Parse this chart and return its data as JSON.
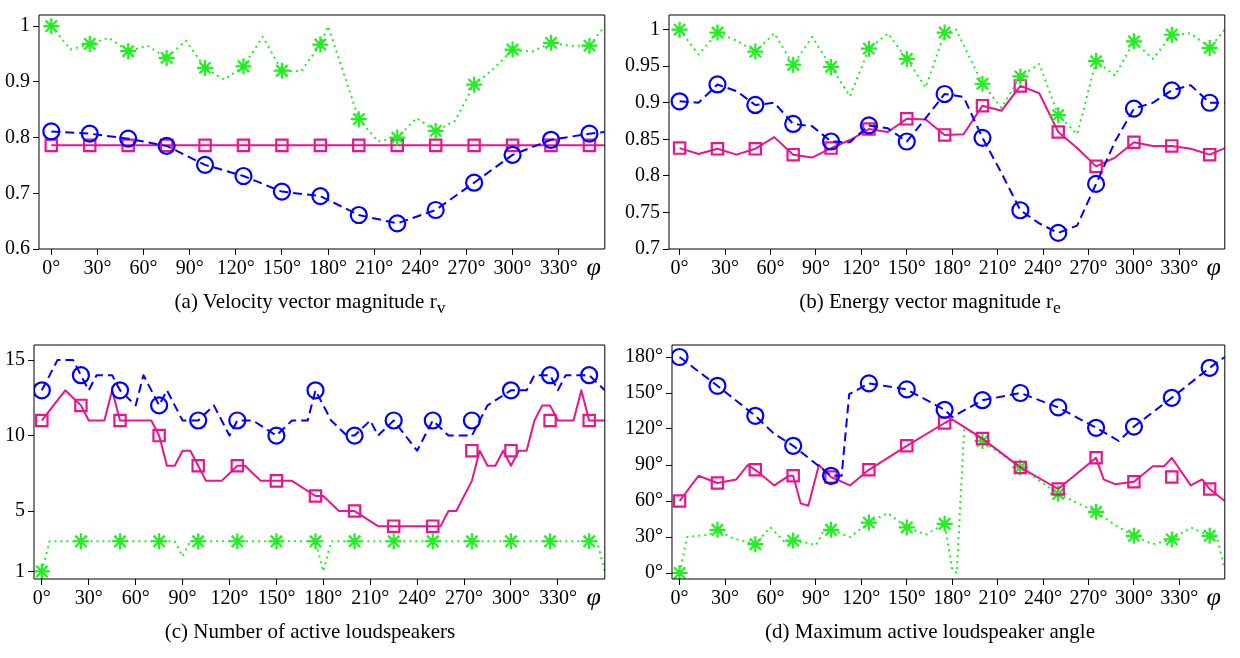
{
  "chart_data": [
    {
      "type": "line",
      "title": "(a) Velocity vector magnitude r$_{v}$",
      "xlabel": "φ",
      "xlim": [
        -8,
        360
      ],
      "ylim": [
        0.6,
        1.02
      ],
      "xticks": [
        {
          "value": 0,
          "label": "0°"
        },
        {
          "value": 30,
          "label": "30°"
        },
        {
          "value": 60,
          "label": "60°"
        },
        {
          "value": 90,
          "label": "90°"
        },
        {
          "value": 120,
          "label": "120°"
        },
        {
          "value": 150,
          "label": "150°"
        },
        {
          "value": 180,
          "label": "180°"
        },
        {
          "value": 210,
          "label": "210°"
        },
        {
          "value": 240,
          "label": "240°"
        },
        {
          "value": 270,
          "label": "270°"
        },
        {
          "value": 300,
          "label": "300°"
        },
        {
          "value": 330,
          "label": "330°"
        }
      ],
      "yticks": [
        0.6,
        0.7,
        0.8,
        0.9,
        1
      ],
      "grid": false,
      "legend": false,
      "series": [
        {
          "type": "line",
          "color": "#22ee22",
          "line_style": "dotted",
          "marker": "none",
          "x": [
            0,
            12.5,
            25,
            37.5,
            50,
            62.5,
            75,
            87.5,
            100,
            112.5,
            125,
            137.5,
            150,
            162.5,
            175,
            180,
            200,
            212.5,
            225,
            237.5,
            250,
            262.5,
            275,
            287.5,
            300,
            312.5,
            325,
            337.5,
            350,
            360
          ],
          "values": [
            1.0,
            0.958,
            0.968,
            0.979,
            0.955,
            0.965,
            0.943,
            0.974,
            0.925,
            0.904,
            0.928,
            0.981,
            0.92,
            0.919,
            0.967,
            1.0,
            0.833,
            0.793,
            0.8,
            0.835,
            0.812,
            0.83,
            0.895,
            0.923,
            0.958,
            0.954,
            0.97,
            0.965,
            0.965,
            1.0
          ]
        },
        {
          "type": "scatter",
          "color": "#22ee22",
          "marker": "cross",
          "x": [
            0,
            25,
            50,
            75,
            100,
            125,
            150,
            175,
            200,
            225,
            250,
            275,
            300,
            325,
            350
          ],
          "values": [
            1.0,
            0.968,
            0.955,
            0.943,
            0.925,
            0.928,
            0.92,
            0.967,
            0.833,
            0.8,
            0.812,
            0.895,
            0.958,
            0.97,
            0.965
          ]
        },
        {
          "type": "line",
          "color": "#0000ff",
          "line_style": "dashed",
          "marker": "none",
          "x": [
            0,
            25,
            50,
            75,
            100,
            125,
            150,
            175,
            200,
            225,
            250,
            275,
            300,
            325,
            350,
            360
          ],
          "values": [
            0.811,
            0.807,
            0.798,
            0.785,
            0.751,
            0.731,
            0.703,
            0.695,
            0.661,
            0.646,
            0.67,
            0.719,
            0.769,
            0.796,
            0.807,
            0.81
          ]
        },
        {
          "type": "scatter",
          "color": "#0000ff",
          "marker": "circle",
          "x": [
            0,
            25,
            50,
            75,
            100,
            125,
            150,
            175,
            200,
            225,
            250,
            275,
            300,
            325,
            350
          ],
          "values": [
            0.811,
            0.807,
            0.798,
            0.785,
            0.751,
            0.731,
            0.703,
            0.695,
            0.661,
            0.646,
            0.67,
            0.719,
            0.769,
            0.796,
            0.807
          ]
        },
        {
          "type": "line",
          "color": "#e6168c",
          "line_style": "solid",
          "marker": "none",
          "x": [
            0,
            360
          ],
          "values": [
            0.786,
            0.786
          ]
        },
        {
          "type": "scatter",
          "color": "#e6168c",
          "marker": "square",
          "x": [
            0,
            25,
            50,
            75,
            100,
            125,
            150,
            175,
            200,
            225,
            250,
            275,
            300,
            325,
            350
          ],
          "values": [
            0.786,
            0.786,
            0.786,
            0.786,
            0.786,
            0.786,
            0.786,
            0.786,
            0.786,
            0.786,
            0.786,
            0.786,
            0.786,
            0.786,
            0.786
          ]
        }
      ]
    },
    {
      "type": "line",
      "title": "(b) Energy vector magnitude r$_{e}$",
      "xlabel": "φ",
      "xlim": [
        -7,
        360
      ],
      "ylim": [
        0.7,
        1.02
      ],
      "xticks": [
        {
          "value": 0,
          "label": "0°"
        },
        {
          "value": 30,
          "label": "30°"
        },
        {
          "value": 60,
          "label": "60°"
        },
        {
          "value": 90,
          "label": "90°"
        },
        {
          "value": 120,
          "label": "120°"
        },
        {
          "value": 150,
          "label": "150°"
        },
        {
          "value": 180,
          "label": "180°"
        },
        {
          "value": 210,
          "label": "210°"
        },
        {
          "value": 240,
          "label": "240°"
        },
        {
          "value": 270,
          "label": "270°"
        },
        {
          "value": 300,
          "label": "300°"
        },
        {
          "value": 330,
          "label": "330°"
        }
      ],
      "yticks": [
        0.7,
        0.75,
        0.8,
        0.85,
        0.9,
        0.95,
        1
      ],
      "grid": false,
      "legend": false,
      "series": [
        {
          "type": "line",
          "color": "#22ee22",
          "line_style": "dotted",
          "marker": "none",
          "x": [
            0,
            12.5,
            25,
            37.5,
            50,
            62.5,
            75,
            87.5,
            100,
            112.5,
            125,
            137.5,
            150,
            162.5,
            175,
            182.5,
            200,
            212.5,
            225,
            237.5,
            250,
            262.5,
            275,
            287.5,
            300,
            312.5,
            325,
            337.5,
            350,
            360
          ],
          "values": [
            1.0,
            0.966,
            0.996,
            0.985,
            0.97,
            0.995,
            0.952,
            0.99,
            0.949,
            0.909,
            0.974,
            0.995,
            0.96,
            0.921,
            0.996,
            1.0,
            0.926,
            0.893,
            0.936,
            0.953,
            0.883,
            0.857,
            0.957,
            0.937,
            0.984,
            0.96,
            0.993,
            0.995,
            0.975,
            1.0
          ]
        },
        {
          "type": "scatter",
          "color": "#22ee22",
          "marker": "cross",
          "x": [
            0,
            25,
            50,
            75,
            100,
            125,
            150,
            175,
            200,
            225,
            250,
            275,
            300,
            325,
            350
          ],
          "values": [
            1.0,
            0.996,
            0.97,
            0.952,
            0.949,
            0.974,
            0.96,
            0.996,
            0.926,
            0.936,
            0.883,
            0.957,
            0.984,
            0.993,
            0.975
          ]
        },
        {
          "type": "line",
          "color": "#0000ff",
          "line_style": "dashed",
          "marker": "none",
          "x": [
            0,
            12.5,
            25,
            37.5,
            50,
            62.5,
            75,
            87.5,
            100,
            112.5,
            125,
            137.5,
            150,
            162.5,
            175,
            187.5,
            200,
            212.5,
            225,
            237.5,
            250,
            262.5,
            275,
            287.5,
            300,
            312.5,
            325,
            337.5,
            350,
            360
          ],
          "values": [
            0.902,
            0.9,
            0.925,
            0.916,
            0.897,
            0.9,
            0.871,
            0.868,
            0.847,
            0.846,
            0.869,
            0.865,
            0.847,
            0.879,
            0.912,
            0.908,
            0.852,
            0.804,
            0.753,
            0.735,
            0.722,
            0.732,
            0.789,
            0.847,
            0.892,
            0.9,
            0.917,
            0.924,
            0.9,
            0.9
          ]
        },
        {
          "type": "scatter",
          "color": "#0000ff",
          "marker": "circle",
          "x": [
            0,
            25,
            50,
            75,
            100,
            125,
            150,
            175,
            200,
            225,
            250,
            275,
            300,
            325,
            350
          ],
          "values": [
            0.902,
            0.925,
            0.897,
            0.871,
            0.847,
            0.869,
            0.847,
            0.912,
            0.852,
            0.753,
            0.722,
            0.789,
            0.892,
            0.917,
            0.9
          ]
        },
        {
          "type": "line",
          "color": "#e6168c",
          "line_style": "solid",
          "marker": "none",
          "x": [
            0,
            12.5,
            25,
            37.5,
            50,
            62.5,
            75,
            87.5,
            100,
            112.5,
            125,
            137.5,
            150,
            162.5,
            175,
            187.5,
            200,
            212.5,
            225,
            237.5,
            250,
            262.5,
            275,
            287.5,
            300,
            312.5,
            325,
            337.5,
            350,
            360
          ],
          "values": [
            0.838,
            0.83,
            0.837,
            0.829,
            0.837,
            0.853,
            0.829,
            0.825,
            0.838,
            0.849,
            0.864,
            0.86,
            0.878,
            0.877,
            0.856,
            0.857,
            0.896,
            0.889,
            0.923,
            0.913,
            0.86,
            0.838,
            0.813,
            0.825,
            0.846,
            0.841,
            0.841,
            0.837,
            0.829,
            0.838
          ]
        },
        {
          "type": "scatter",
          "color": "#e6168c",
          "marker": "square",
          "x": [
            0,
            25,
            50,
            75,
            100,
            125,
            150,
            175,
            200,
            225,
            250,
            275,
            300,
            325,
            350
          ],
          "values": [
            0.838,
            0.837,
            0.837,
            0.829,
            0.838,
            0.864,
            0.878,
            0.856,
            0.896,
            0.923,
            0.86,
            0.813,
            0.846,
            0.841,
            0.829
          ]
        }
      ]
    },
    {
      "type": "line",
      "title": "(c) Number of active loudspeakers",
      "xlabel": "φ",
      "xlim": [
        -5,
        360
      ],
      "ylim": [
        0.5,
        16
      ],
      "xticks": [
        {
          "value": 0,
          "label": "0°"
        },
        {
          "value": 30,
          "label": "30°"
        },
        {
          "value": 60,
          "label": "60°"
        },
        {
          "value": 90,
          "label": "90°"
        },
        {
          "value": 120,
          "label": "120°"
        },
        {
          "value": 150,
          "label": "150°"
        },
        {
          "value": 180,
          "label": "180°"
        },
        {
          "value": 210,
          "label": "210°"
        },
        {
          "value": 240,
          "label": "240°"
        },
        {
          "value": 270,
          "label": "270°"
        },
        {
          "value": 300,
          "label": "300°"
        },
        {
          "value": 330,
          "label": "330°"
        }
      ],
      "yticks": [
        1,
        5,
        10,
        15
      ],
      "grid": false,
      "legend": false,
      "series": [
        {
          "type": "line",
          "color": "#0000ff",
          "line_style": "dashed",
          "marker": "none",
          "x": [
            0,
            10,
            20,
            25,
            30,
            35,
            45,
            50,
            60,
            65,
            75,
            80,
            90,
            100,
            110,
            120,
            125,
            135,
            150,
            160,
            170,
            175,
            185,
            195,
            200,
            210,
            215,
            225,
            240,
            245,
            250,
            260,
            275,
            285,
            300,
            310,
            315,
            325,
            330,
            335,
            350,
            360
          ],
          "values": [
            13,
            15,
            15,
            14,
            13,
            14,
            14,
            13,
            12,
            14,
            12,
            13,
            11,
            11,
            12,
            10,
            11,
            11,
            10,
            11,
            11,
            13,
            11,
            10,
            10,
            11,
            10,
            11,
            9,
            10,
            11,
            10,
            10,
            12,
            13,
            13,
            14,
            14,
            13,
            14,
            14,
            13
          ]
        },
        {
          "type": "scatter",
          "color": "#0000ff",
          "marker": "circle",
          "x": [
            0,
            25,
            50,
            75,
            100,
            125,
            150,
            175,
            200,
            225,
            250,
            275,
            300,
            325,
            350
          ],
          "values": [
            13,
            14,
            13,
            12,
            11,
            11,
            10,
            13,
            10,
            11,
            11,
            11,
            13,
            14,
            14
          ]
        },
        {
          "type": "line",
          "color": "#e6168c",
          "line_style": "solid",
          "marker": "none",
          "x": [
            0,
            15,
            25,
            30,
            40,
            45,
            50,
            70,
            75,
            80,
            85,
            90,
            95,
            100,
            105,
            115,
            125,
            130,
            140,
            160,
            175,
            180,
            190,
            200,
            215,
            255,
            260,
            265,
            275,
            280,
            285,
            290,
            295,
            300,
            305,
            310,
            315,
            320,
            325,
            330,
            340,
            345,
            350,
            360
          ],
          "values": [
            11,
            13,
            12,
            11,
            11,
            13,
            11,
            11,
            10,
            8,
            8,
            9,
            9,
            8,
            7,
            7,
            8,
            8,
            7,
            7,
            6,
            6,
            5,
            5,
            4,
            4,
            5,
            5,
            7,
            9,
            8,
            8,
            9,
            8,
            9,
            9,
            11,
            12,
            12,
            11,
            11,
            13,
            11,
            11
          ]
        },
        {
          "type": "scatter",
          "color": "#e6168c",
          "marker": "square",
          "x": [
            0,
            25,
            50,
            75,
            100,
            125,
            150,
            175,
            200,
            225,
            250,
            275,
            300,
            325,
            350
          ],
          "values": [
            11,
            12,
            11,
            10,
            8,
            8,
            7,
            6,
            5,
            4,
            4,
            9,
            9,
            11,
            11
          ]
        },
        {
          "type": "line",
          "color": "#22ee22",
          "line_style": "dotted",
          "marker": "none",
          "x": [
            0,
            5,
            85,
            90,
            95,
            175,
            180,
            185,
            355,
            360
          ],
          "values": [
            1,
            3,
            3,
            2,
            3,
            3,
            1,
            3,
            3,
            1
          ]
        },
        {
          "type": "scatter",
          "color": "#22ee22",
          "marker": "cross",
          "x": [
            0,
            25,
            50,
            75,
            100,
            125,
            150,
            175,
            200,
            225,
            250,
            275,
            300,
            325,
            350
          ],
          "values": [
            1,
            3,
            3,
            3,
            3,
            3,
            3,
            3,
            3,
            3,
            3,
            3,
            3,
            3,
            3
          ]
        }
      ]
    },
    {
      "type": "line",
      "title": "(d) Maximum active loudspeaker angle",
      "xlabel": "φ",
      "xlim": [
        -5,
        360
      ],
      "ylim": [
        -5,
        190
      ],
      "xticks": [
        {
          "value": 0,
          "label": "0°"
        },
        {
          "value": 30,
          "label": "30°"
        },
        {
          "value": 60,
          "label": "60°"
        },
        {
          "value": 90,
          "label": "90°"
        },
        {
          "value": 120,
          "label": "120°"
        },
        {
          "value": 150,
          "label": "150°"
        },
        {
          "value": 180,
          "label": "180°"
        },
        {
          "value": 210,
          "label": "210°"
        },
        {
          "value": 240,
          "label": "240°"
        },
        {
          "value": 270,
          "label": "270°"
        },
        {
          "value": 300,
          "label": "300°"
        },
        {
          "value": 330,
          "label": "330°"
        }
      ],
      "yticks": [
        {
          "value": 0,
          "label": "0°"
        },
        {
          "value": 30,
          "label": "30°"
        },
        {
          "value": 60,
          "label": "60°"
        },
        {
          "value": 90,
          "label": "90°"
        },
        {
          "value": 120,
          "label": "120°"
        },
        {
          "value": 150,
          "label": "150°"
        },
        {
          "value": 180,
          "label": "180°"
        }
      ],
      "grid": false,
      "legend": false,
      "series": [
        {
          "type": "line",
          "color": "#0000ff",
          "line_style": "dashed",
          "marker": "none",
          "x": [
            0,
            25,
            50,
            62.5,
            75,
            100,
            107,
            112,
            125,
            150,
            175,
            180,
            200,
            225,
            250,
            275,
            290,
            300,
            325,
            350,
            360
          ],
          "values": [
            180,
            156,
            131,
            116,
            106,
            81,
            81,
            149,
            158,
            153,
            136,
            130,
            144,
            150,
            138,
            121,
            110,
            122,
            146,
            171,
            180
          ]
        },
        {
          "type": "scatter",
          "color": "#0000ff",
          "marker": "circle",
          "x": [
            0,
            25,
            50,
            75,
            100,
            125,
            150,
            175,
            200,
            225,
            250,
            275,
            300,
            325,
            350
          ],
          "values": [
            180,
            156,
            131,
            106,
            81,
            158,
            153,
            136,
            144,
            150,
            138,
            121,
            122,
            146,
            171
          ]
        },
        {
          "type": "line",
          "color": "#e6168c",
          "line_style": "solid",
          "marker": "none",
          "x": [
            0,
            12.5,
            25,
            37.5,
            45,
            50,
            62.5,
            72,
            75,
            80,
            85,
            92,
            100,
            112.5,
            125,
            150,
            175,
            180,
            200,
            225,
            250,
            275,
            280,
            287.5,
            300,
            312.5,
            320,
            325,
            337.5,
            345,
            350,
            360
          ],
          "values": [
            60,
            81,
            75,
            78,
            90,
            86,
            73,
            81,
            81,
            58,
            56,
            90,
            80,
            73,
            86,
            106,
            125,
            128,
            112,
            88,
            70,
            96,
            78,
            74,
            76,
            89,
            89,
            96,
            73,
            78,
            70,
            60
          ]
        },
        {
          "type": "scatter",
          "color": "#e6168c",
          "marker": "square",
          "x": [
            0,
            25,
            50,
            75,
            100,
            125,
            150,
            175,
            200,
            225,
            250,
            275,
            300,
            325,
            350
          ],
          "values": [
            60,
            75,
            86,
            81,
            80,
            86,
            106,
            125,
            112,
            88,
            70,
            96,
            76,
            80,
            70
          ]
        },
        {
          "type": "line",
          "color": "#22ee22",
          "line_style": "dotted",
          "marker": "none",
          "x": [
            0,
            5,
            20,
            25,
            35,
            50,
            60,
            70,
            75,
            85,
            90,
            95,
            100,
            112.5,
            125,
            137.5,
            150,
            162.5,
            175,
            180,
            183,
            188,
            200,
            225,
            250,
            275,
            287.5,
            300,
            312.5,
            325,
            337.5,
            350,
            355,
            360
          ],
          "values": [
            0,
            30,
            32,
            36,
            29,
            24,
            38,
            25,
            27,
            25,
            23,
            35,
            36,
            30,
            42,
            50,
            38,
            32,
            41,
            3,
            0,
            122,
            110,
            88,
            66,
            51,
            40,
            31,
            24,
            28,
            38,
            31,
            29,
            3
          ]
        },
        {
          "type": "scatter",
          "color": "#22ee22",
          "marker": "cross",
          "x": [
            0,
            25,
            50,
            75,
            100,
            125,
            150,
            175,
            200,
            225,
            250,
            275,
            300,
            325,
            350
          ],
          "values": [
            0,
            36,
            24,
            27,
            36,
            42,
            38,
            41,
            110,
            88,
            66,
            51,
            31,
            28,
            31
          ]
        }
      ]
    }
  ]
}
